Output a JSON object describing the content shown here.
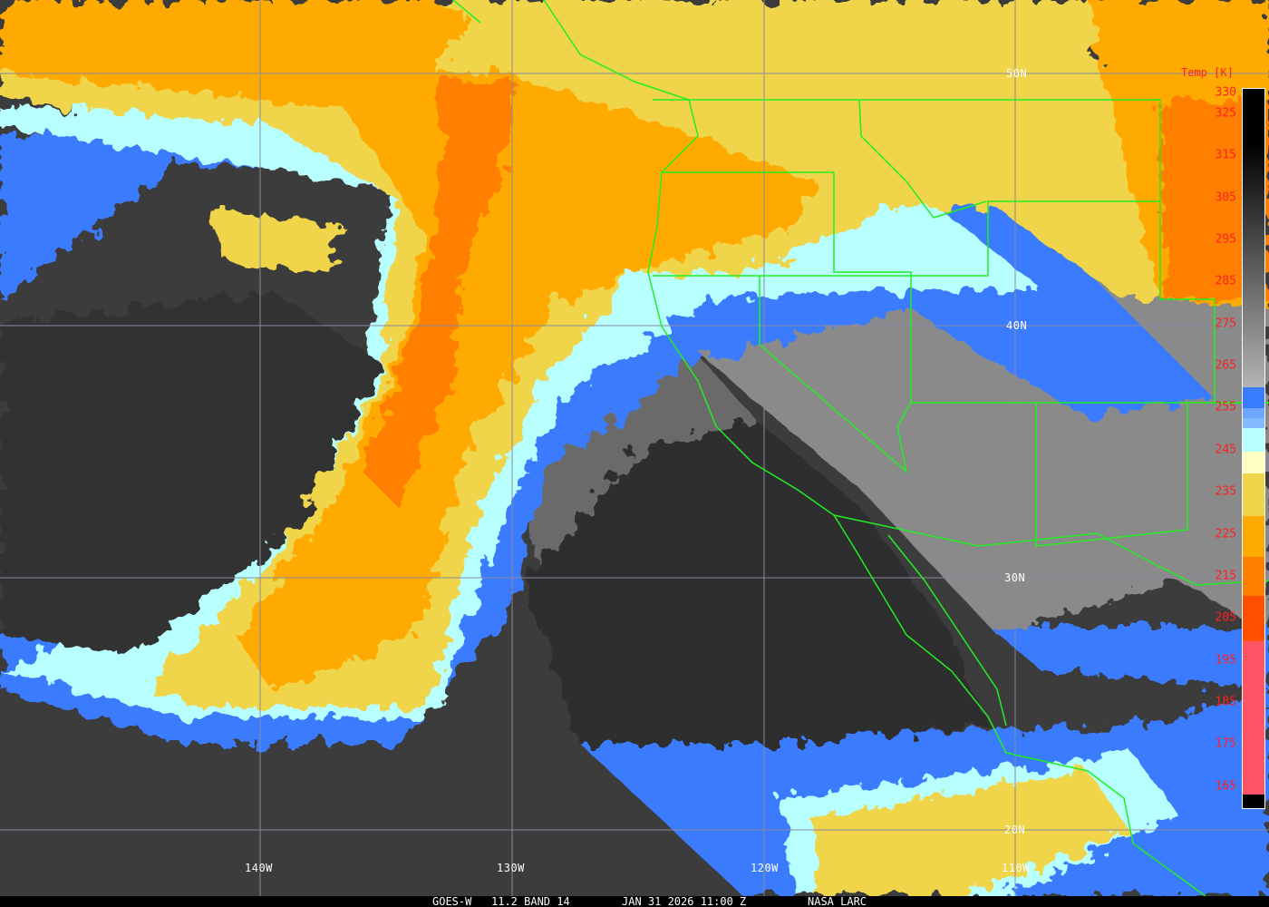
{
  "image": {
    "satellite": "GOES-W",
    "channel": "11.2 BAND 14",
    "datetime": "JAN 31 2026 11:00 Z",
    "source": "NASA LARC"
  },
  "grid": {
    "latitudes": [
      "50N",
      "40N",
      "30N",
      "20N"
    ],
    "longitudes": [
      "140W",
      "130W",
      "120W",
      "110W"
    ],
    "line_color": "#8a8aa0",
    "boundary_color": "#22ee22"
  },
  "colorbar": {
    "title": "Temp [K]",
    "label_color": "#ff2020",
    "ticks": [
      "330",
      "325",
      "315",
      "305",
      "295",
      "285",
      "275",
      "265",
      "255",
      "245",
      "235",
      "225",
      "215",
      "205",
      "195",
      "185",
      "175",
      "165"
    ],
    "range_k": [
      331,
      160
    ],
    "segments": [
      {
        "from": 331,
        "to": 318,
        "color": "#000000"
      },
      {
        "from": 318,
        "to": 260,
        "color": "#000000",
        "to_color": "#b4b4b4"
      },
      {
        "from": 260,
        "to": 255,
        "color": "#3a7cff"
      },
      {
        "from": 255,
        "to": 252.7,
        "color": "#6fa6ff"
      },
      {
        "from": 252.7,
        "to": 250.3,
        "color": "#84b8ff"
      },
      {
        "from": 250.3,
        "to": 244.7,
        "color": "#b8ffff"
      },
      {
        "from": 244.7,
        "to": 239.5,
        "color": "#ffffc4"
      },
      {
        "from": 239.5,
        "to": 229.4,
        "color": "#f0d44a"
      },
      {
        "from": 229.4,
        "to": 219.7,
        "color": "#ffaa00"
      },
      {
        "from": 219.7,
        "to": 210.4,
        "color": "#ff7f00"
      },
      {
        "from": 210.4,
        "to": 199.6,
        "color": "#ff5000"
      },
      {
        "from": 199.6,
        "to": 163.2,
        "color": "#ff5466"
      },
      {
        "from": 163.2,
        "to": 160,
        "color": "#000000"
      }
    ]
  }
}
